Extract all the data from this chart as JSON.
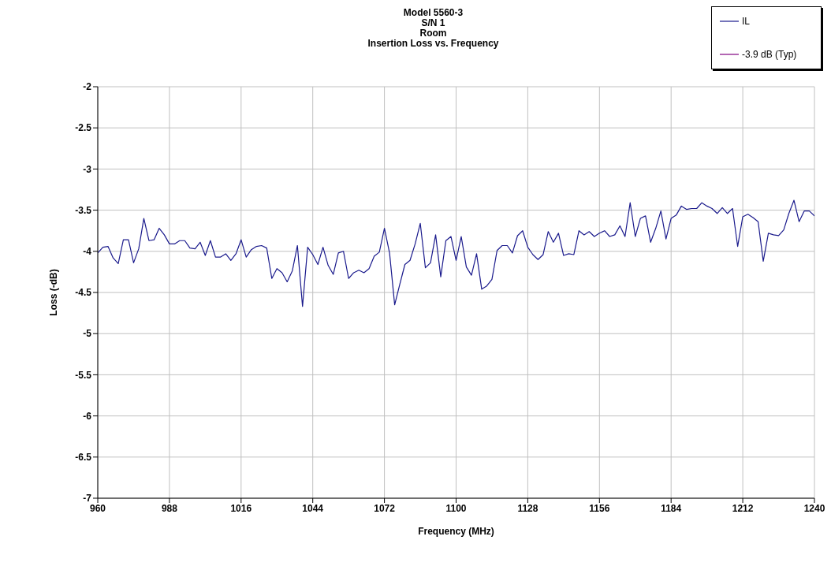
{
  "chart_data": {
    "type": "line",
    "title": "Model 5560-3\nS/N 1\nRoom\nInsertion Loss vs. Frequency",
    "xlabel": "Frequency (MHz)",
    "ylabel": "Loss (-dB)",
    "x": [
      960,
      962,
      964,
      966,
      968,
      970,
      972,
      974,
      976,
      978,
      980,
      982,
      984,
      986,
      988,
      990,
      992,
      994,
      996,
      998,
      1000,
      1002,
      1004,
      1006,
      1008,
      1010,
      1012,
      1014,
      1016,
      1018,
      1020,
      1022,
      1024,
      1026,
      1028,
      1030,
      1032,
      1034,
      1036,
      1038,
      1040,
      1042,
      1044,
      1046,
      1048,
      1050,
      1052,
      1054,
      1056,
      1058,
      1060,
      1062,
      1064,
      1066,
      1068,
      1070,
      1072,
      1074,
      1076,
      1078,
      1080,
      1082,
      1084,
      1086,
      1088,
      1090,
      1092,
      1094,
      1096,
      1098,
      1100,
      1102,
      1104,
      1106,
      1108,
      1110,
      1112,
      1114,
      1116,
      1118,
      1120,
      1122,
      1124,
      1126,
      1128,
      1130,
      1132,
      1134,
      1136,
      1138,
      1140,
      1142,
      1144,
      1146,
      1148,
      1150,
      1152,
      1154,
      1156,
      1158,
      1160,
      1162,
      1164,
      1166,
      1168,
      1170,
      1172,
      1174,
      1176,
      1178,
      1180,
      1182,
      1184,
      1186,
      1188,
      1190,
      1192,
      1194,
      1196,
      1198,
      1200,
      1202,
      1204,
      1206,
      1208,
      1210,
      1212,
      1214,
      1216,
      1218,
      1220,
      1222,
      1224,
      1226,
      1228,
      1230,
      1232,
      1234,
      1236,
      1238,
      1240
    ],
    "series": [
      {
        "name": "IL",
        "color": "#1a1a8c",
        "values": [
          -4.02,
          -3.95,
          -3.94,
          -4.08,
          -4.15,
          -3.86,
          -3.86,
          -4.14,
          -3.97,
          -3.6,
          -3.87,
          -3.86,
          -3.72,
          -3.8,
          -3.91,
          -3.91,
          -3.87,
          -3.87,
          -3.96,
          -3.97,
          -3.89,
          -4.05,
          -3.87,
          -4.07,
          -4.07,
          -4.03,
          -4.11,
          -4.03,
          -3.86,
          -4.07,
          -3.98,
          -3.94,
          -3.93,
          -3.96,
          -4.33,
          -4.21,
          -4.26,
          -4.37,
          -4.24,
          -3.93,
          -4.67,
          -3.95,
          -4.04,
          -4.16,
          -3.95,
          -4.17,
          -4.28,
          -4.02,
          -4.0,
          -4.33,
          -4.26,
          -4.23,
          -4.26,
          -4.21,
          -4.06,
          -4.01,
          -3.72,
          -4.02,
          -4.65,
          -4.4,
          -4.16,
          -4.11,
          -3.91,
          -3.66,
          -4.2,
          -4.14,
          -3.8,
          -4.31,
          -3.87,
          -3.82,
          -4.11,
          -3.82,
          -4.19,
          -4.29,
          -4.03,
          -4.46,
          -4.42,
          -4.34,
          -3.99,
          -3.93,
          -3.93,
          -4.02,
          -3.81,
          -3.75,
          -3.95,
          -4.04,
          -4.1,
          -4.04,
          -3.76,
          -3.89,
          -3.78,
          -4.05,
          -4.03,
          -4.04,
          -3.75,
          -3.8,
          -3.76,
          -3.82,
          -3.78,
          -3.75,
          -3.82,
          -3.8,
          -3.69,
          -3.82,
          -3.41,
          -3.82,
          -3.6,
          -3.57,
          -3.89,
          -3.72,
          -3.51,
          -3.85,
          -3.6,
          -3.56,
          -3.45,
          -3.49,
          -3.48,
          -3.48,
          -3.41,
          -3.45,
          -3.48,
          -3.54,
          -3.47,
          -3.54,
          -3.48,
          -3.94,
          -3.58,
          -3.55,
          -3.59,
          -3.64,
          -4.12,
          -3.78,
          -3.8,
          -3.81,
          -3.74,
          -3.54,
          -3.38,
          -3.64,
          -3.51,
          -3.51,
          -3.57
        ]
      },
      {
        "name": "-3.9 dB (Typ)",
        "color": "#800080",
        "values": [
          null,
          null,
          null,
          null,
          null,
          null,
          null,
          null,
          null,
          null,
          null,
          null,
          null,
          null,
          null,
          null,
          null,
          null,
          null,
          null,
          null,
          null,
          null,
          null,
          null,
          null,
          null,
          null,
          null,
          null,
          null,
          null,
          null,
          null,
          null,
          null,
          null,
          null,
          null,
          null,
          null,
          null,
          null,
          null,
          null,
          null,
          null,
          null,
          null,
          null,
          null,
          null,
          null,
          null,
          null,
          null,
          null,
          null,
          null,
          null,
          null,
          null,
          null,
          null,
          null,
          null,
          null,
          null,
          null,
          null,
          null,
          null,
          null,
          null,
          null,
          null,
          null,
          null,
          null,
          null,
          null,
          null,
          null,
          null,
          null,
          null,
          null,
          null,
          null,
          null,
          null,
          null,
          null,
          null,
          null,
          null,
          null,
          null,
          null,
          null,
          null,
          null,
          null,
          null,
          null,
          null,
          null,
          null,
          null,
          null,
          null,
          null,
          null,
          null,
          null,
          null,
          null,
          null,
          null,
          null,
          null,
          null,
          null,
          null,
          null,
          null,
          null,
          null,
          null,
          null,
          null,
          null,
          null,
          null,
          null,
          null,
          null,
          null,
          null,
          null,
          null
        ]
      }
    ],
    "xlim": [
      960,
      1240
    ],
    "xticks": [
      960,
      988,
      1016,
      1044,
      1072,
      1100,
      1128,
      1156,
      1184,
      1212,
      1240
    ],
    "ylim": [
      -7,
      -2
    ],
    "yticks": [
      -7,
      -6.5,
      -6,
      -5.5,
      -5,
      -4.5,
      -4,
      -3.5,
      -3,
      -2.5,
      -2
    ],
    "grid": true,
    "legend": "top right",
    "marker": "none",
    "line_style": "solid"
  }
}
